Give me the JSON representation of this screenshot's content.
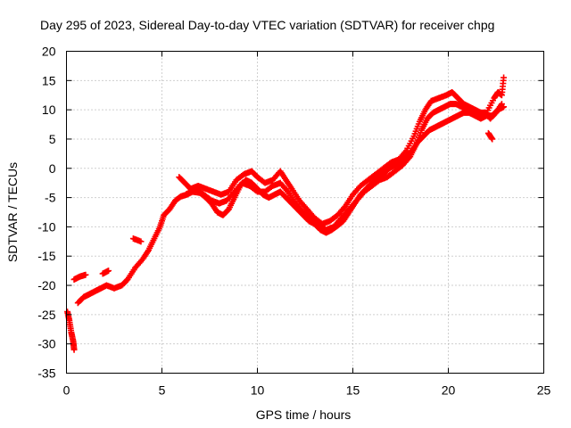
{
  "chart_data": {
    "type": "scatter",
    "title": "Day 295 of 2023, Sidereal Day-to-day VTEC variation (SDTVAR) for receiver chpg",
    "xlabel": "GPS time / hours",
    "ylabel": "SDTVAR / TECUs",
    "xlim": [
      0,
      25
    ],
    "ylim": [
      -35,
      20
    ],
    "xticks": [
      0,
      5,
      10,
      15,
      20,
      25
    ],
    "yticks": [
      -35,
      -30,
      -25,
      -20,
      -15,
      -10,
      -5,
      0,
      5,
      10,
      15,
      20
    ],
    "grid": true,
    "marker": "+",
    "color": "#ff0000",
    "series": [
      {
        "name": "track-main",
        "points": [
          [
            0.05,
            -24.5
          ],
          [
            0.15,
            -26
          ],
          [
            0.25,
            -28
          ],
          [
            0.35,
            -29.5
          ],
          [
            0.4,
            -31
          ],
          [
            0.6,
            -23
          ],
          [
            0.9,
            -22
          ],
          [
            1.2,
            -21.5
          ],
          [
            1.5,
            -21
          ],
          [
            1.8,
            -20.5
          ],
          [
            2.1,
            -20
          ],
          [
            2.5,
            -20.5
          ],
          [
            2.9,
            -20
          ],
          [
            3.2,
            -19
          ],
          [
            3.6,
            -17
          ],
          [
            4.0,
            -15.5
          ],
          [
            4.3,
            -14
          ],
          [
            4.6,
            -12
          ],
          [
            4.9,
            -10
          ],
          [
            5.1,
            -8
          ],
          [
            5.4,
            -7
          ],
          [
            5.7,
            -5.5
          ],
          [
            6.0,
            -4.8
          ],
          [
            6.3,
            -4.5
          ],
          [
            6.6,
            -4
          ],
          [
            7.0,
            -4.2
          ],
          [
            7.3,
            -5
          ],
          [
            7.6,
            -6
          ],
          [
            7.9,
            -7.5
          ],
          [
            8.2,
            -8
          ],
          [
            8.5,
            -7
          ],
          [
            8.8,
            -5
          ],
          [
            9.1,
            -3
          ],
          [
            9.4,
            -2
          ],
          [
            9.7,
            -2.5
          ],
          [
            10.0,
            -3.5
          ],
          [
            10.3,
            -4.5
          ],
          [
            10.6,
            -5
          ],
          [
            10.9,
            -4.5
          ],
          [
            11.2,
            -4
          ],
          [
            11.5,
            -5
          ],
          [
            11.8,
            -6
          ],
          [
            12.1,
            -7
          ],
          [
            12.4,
            -8
          ],
          [
            12.7,
            -9
          ],
          [
            13.0,
            -9.5
          ],
          [
            13.3,
            -10.5
          ],
          [
            13.6,
            -11
          ],
          [
            13.9,
            -10.5
          ],
          [
            14.2,
            -9.8
          ],
          [
            14.5,
            -9
          ],
          [
            14.8,
            -7.5
          ],
          [
            15.1,
            -6
          ],
          [
            15.4,
            -4.5
          ],
          [
            15.7,
            -3.5
          ],
          [
            16.0,
            -2.5
          ],
          [
            16.3,
            -1.5
          ],
          [
            16.6,
            -1
          ],
          [
            16.9,
            0
          ],
          [
            17.2,
            0.5
          ],
          [
            17.5,
            1
          ],
          [
            17.8,
            2
          ],
          [
            18.1,
            3
          ],
          [
            18.4,
            4.5
          ],
          [
            18.7,
            5.5
          ],
          [
            19.0,
            6.5
          ],
          [
            19.3,
            7
          ],
          [
            19.6,
            7.5
          ],
          [
            19.9,
            8
          ],
          [
            20.2,
            8.5
          ],
          [
            20.5,
            9
          ],
          [
            20.8,
            9.5
          ],
          [
            21.1,
            9.5
          ],
          [
            21.4,
            9
          ],
          [
            21.7,
            8.5
          ],
          [
            22.0,
            9
          ],
          [
            22.3,
            9
          ],
          [
            22.6,
            10
          ],
          [
            22.9,
            10.5
          ]
        ]
      },
      {
        "name": "track-upper",
        "points": [
          [
            0.4,
            -19
          ],
          [
            0.7,
            -18.5
          ],
          [
            1.0,
            -18.2
          ],
          [
            1.9,
            -18
          ],
          [
            2.2,
            -17.5
          ],
          [
            3.5,
            -12
          ],
          [
            3.9,
            -12.5
          ],
          [
            5.9,
            -1.5
          ],
          [
            6.2,
            -2.5
          ],
          [
            6.5,
            -3.5
          ],
          [
            6.9,
            -3
          ],
          [
            7.3,
            -3.5
          ],
          [
            7.7,
            -4
          ],
          [
            8.1,
            -4.5
          ],
          [
            8.5,
            -4
          ],
          [
            8.9,
            -2
          ],
          [
            9.3,
            -1
          ],
          [
            9.7,
            -0.5
          ],
          [
            10.0,
            -1.5
          ],
          [
            10.4,
            -2.5
          ],
          [
            10.8,
            -2
          ],
          [
            11.2,
            -0.5
          ],
          [
            11.5,
            -2
          ],
          [
            11.8,
            -3.5
          ],
          [
            12.2,
            -5.5
          ],
          [
            12.6,
            -7
          ],
          [
            13.0,
            -8.5
          ],
          [
            13.4,
            -9.5
          ],
          [
            13.8,
            -9
          ],
          [
            14.2,
            -8
          ],
          [
            14.6,
            -6.5
          ],
          [
            15.0,
            -4.5
          ],
          [
            15.4,
            -3
          ],
          [
            15.8,
            -2
          ],
          [
            16.2,
            -1
          ],
          [
            16.6,
            0
          ],
          [
            17.0,
            1
          ],
          [
            17.4,
            1.5
          ],
          [
            17.8,
            3
          ],
          [
            18.2,
            5.5
          ],
          [
            18.5,
            8
          ],
          [
            18.8,
            10
          ],
          [
            19.1,
            11.5
          ],
          [
            19.5,
            12
          ],
          [
            19.9,
            12.5
          ],
          [
            20.2,
            13
          ],
          [
            20.5,
            12
          ],
          [
            20.8,
            11
          ],
          [
            21.1,
            10.5
          ],
          [
            21.4,
            10
          ],
          [
            21.7,
            9.5
          ],
          [
            22.0,
            9.5
          ],
          [
            22.4,
            12
          ],
          [
            22.6,
            13
          ],
          [
            22.8,
            12.5
          ],
          [
            22.9,
            15.5
          ],
          [
            22.3,
            5
          ],
          [
            22.1,
            6
          ]
        ]
      },
      {
        "name": "track-middle",
        "points": [
          [
            6.4,
            -4
          ],
          [
            6.8,
            -3.5
          ],
          [
            7.2,
            -4.5
          ],
          [
            7.6,
            -5.5
          ],
          [
            8.0,
            -6
          ],
          [
            8.4,
            -5.5
          ],
          [
            8.8,
            -4
          ],
          [
            9.2,
            -2.5
          ],
          [
            9.6,
            -3
          ],
          [
            10.0,
            -4
          ],
          [
            10.4,
            -4
          ],
          [
            10.8,
            -3
          ],
          [
            11.2,
            -2.5
          ],
          [
            11.6,
            -4
          ],
          [
            12.0,
            -6
          ],
          [
            12.4,
            -7.5
          ],
          [
            12.8,
            -8.5
          ],
          [
            13.2,
            -9.5
          ],
          [
            13.6,
            -10.5
          ],
          [
            14.0,
            -10
          ],
          [
            14.4,
            -8.5
          ],
          [
            14.8,
            -7
          ],
          [
            15.2,
            -5.5
          ],
          [
            15.6,
            -4
          ],
          [
            16.0,
            -3
          ],
          [
            16.4,
            -2
          ],
          [
            16.8,
            -1.5
          ],
          [
            17.2,
            -0.5
          ],
          [
            17.6,
            0.5
          ],
          [
            18.0,
            2
          ],
          [
            18.3,
            4
          ],
          [
            18.6,
            6.5
          ],
          [
            18.9,
            8.5
          ],
          [
            19.2,
            9.5
          ],
          [
            19.5,
            10
          ],
          [
            19.8,
            10.5
          ],
          [
            20.1,
            11
          ],
          [
            20.4,
            11
          ],
          [
            20.7,
            10.5
          ],
          [
            21.0,
            10
          ],
          [
            21.3,
            9.5
          ],
          [
            21.6,
            9
          ],
          [
            21.9,
            9.5
          ],
          [
            22.2,
            8.5
          ],
          [
            22.5,
            9.5
          ],
          [
            22.8,
            11
          ]
        ]
      }
    ]
  }
}
